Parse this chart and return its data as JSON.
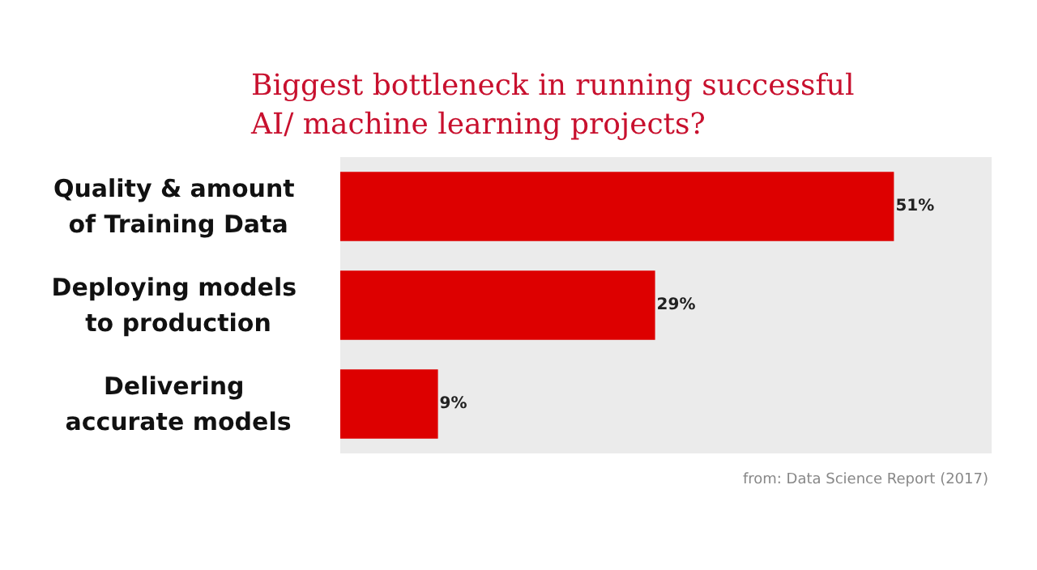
{
  "chart_data": {
    "type": "bar",
    "orientation": "horizontal",
    "title": "Biggest bottleneck in running successful AI/ machine learning projects?",
    "categories": [
      "Quality & amount of Training Data",
      "Deploying models to production",
      "Delivering accurate models"
    ],
    "values": [
      51,
      29,
      9
    ],
    "color": "#dd0000",
    "value_labels": [
      "51%",
      "29%",
      "9%"
    ],
    "xlim": [
      0,
      60
    ],
    "tick_labels": "y",
    "grid": false,
    "annotations": [
      "from: Data Science Report (2017)"
    ]
  }
}
